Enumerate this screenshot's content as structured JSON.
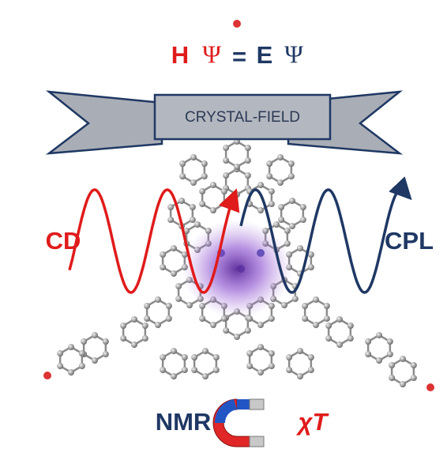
{
  "equation": {
    "h": "H",
    "psi_left": "Ψ",
    "equals": "=",
    "e": "E",
    "psi_right": "Ψ"
  },
  "banner": "CRYSTAL-FIELD",
  "left_label": "CD",
  "right_label": "CPL",
  "bottom_left_label": "NMR",
  "bottom_right_label": "χT"
}
